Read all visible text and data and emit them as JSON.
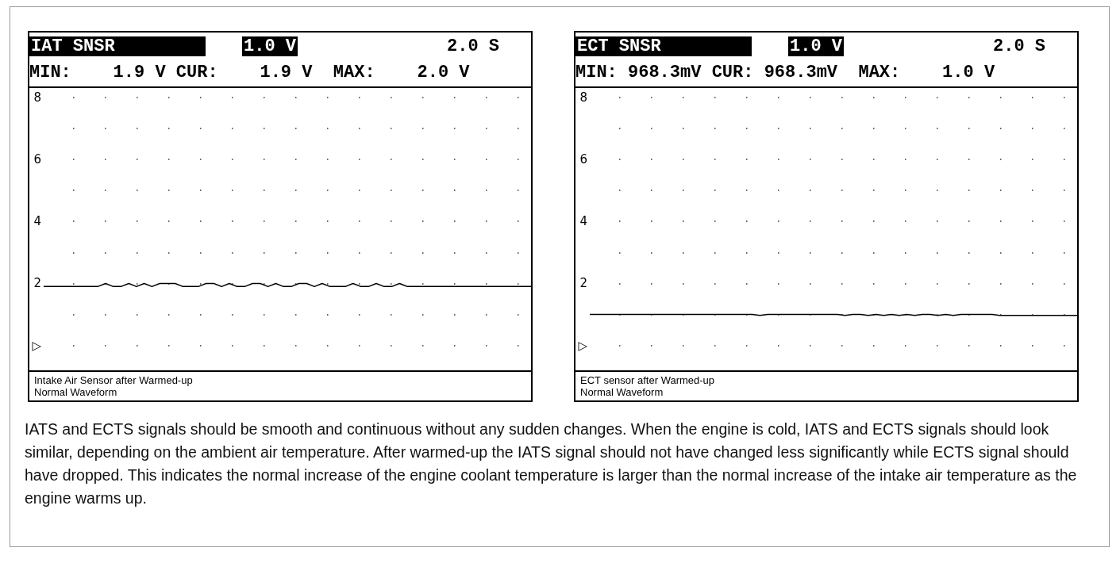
{
  "chart_data": [
    {
      "type": "line",
      "title": "IAT SNSR",
      "subtitle": "MIN:    1.9 V CUR:    1.9 V  MAX:    2.0 V",
      "annotations": [
        "1.0 V",
        "2.0 S",
        "Intake Air Sensor after Warmed-up",
        "Normal Waveform"
      ],
      "categories": [
        null,
        null,
        null,
        null,
        null,
        null,
        null,
        null,
        null,
        null,
        null,
        null,
        null,
        null,
        null,
        null,
        null,
        null,
        null,
        null,
        null,
        null,
        null,
        null,
        null,
        null,
        null,
        null,
        null,
        null,
        null,
        null,
        null,
        null,
        null,
        null,
        null,
        null,
        null,
        null,
        null,
        null,
        null,
        null,
        null,
        null,
        null,
        null,
        null,
        null,
        null,
        null,
        null,
        null,
        null,
        null,
        null,
        null,
        null,
        null,
        null,
        null,
        null,
        null
      ],
      "series": [
        {
          "color": "#000000",
          "values": [
            1.9,
            1.9,
            1.9,
            1.9,
            1.9,
            1.9,
            1.9,
            1.9,
            2.0,
            1.9,
            1.9,
            2.0,
            1.9,
            2.0,
            1.9,
            2.0,
            2.0,
            2.0,
            1.9,
            1.9,
            1.9,
            2.0,
            2.0,
            1.9,
            2.0,
            1.9,
            1.9,
            2.0,
            2.0,
            1.9,
            2.0,
            1.9,
            1.9,
            2.0,
            2.0,
            1.9,
            2.0,
            1.9,
            1.9,
            1.9,
            2.0,
            1.9,
            1.9,
            2.0,
            1.9,
            1.9,
            2.0,
            1.9,
            1.9,
            1.9,
            1.9,
            1.9,
            1.9,
            1.9,
            1.9,
            1.9,
            1.9,
            1.9,
            1.9,
            1.9,
            1.9,
            1.9,
            1.9,
            1.9
          ]
        }
      ],
      "ylim": [
        -0.8,
        8.3
      ],
      "yticks": [
        {
          "value": 0,
          "label": "▷"
        },
        {
          "value": 1,
          "label": null
        },
        2,
        {
          "value": 3,
          "label": null
        },
        4,
        {
          "value": 5,
          "label": null
        },
        6,
        {
          "value": 7,
          "label": null
        },
        8
      ],
      "grid": "y",
      "tick_labels": "y",
      "marker": "none",
      "line_style": "solid"
    },
    {
      "type": "line",
      "title": "ECT SNSR",
      "subtitle": "MIN: 968.3mV CUR: 968.3mV  MAX:    1.0 V",
      "annotations": [
        "1.0 V",
        "2.0 S",
        "ECT sensor after Warmed-up",
        "Normal Waveform",
        "IATS and ECTS signals should be smooth and continuous without any sudden changes. When the engine is cold, IATS and ECTS signals should look similar, depending on the ambient air temperature. After warmed-up the IATS signal should not have changed less significantly while ECTS signal should have dropped. This indicates the normal increase of the engine coolant temperature is larger than the normal increase of the intake air temperature as the engine warms up."
      ],
      "categories": [
        null,
        null,
        null,
        null,
        null,
        null,
        null,
        null,
        null,
        null,
        null,
        null,
        null,
        null,
        null,
        null,
        null,
        null,
        null,
        null,
        null,
        null,
        null,
        null,
        null,
        null,
        null,
        null,
        null,
        null,
        null,
        null,
        null,
        null,
        null,
        null,
        null,
        null,
        null,
        null,
        null,
        null,
        null,
        null,
        null,
        null,
        null,
        null,
        null,
        null,
        null,
        null,
        null,
        null,
        null,
        null,
        null,
        null,
        null,
        null,
        null,
        null,
        null,
        null
      ],
      "series": [
        {
          "color": "#000000",
          "values": [
            1.0,
            1.0,
            1.0,
            1.0,
            1.0,
            1.0,
            1.0,
            1.0,
            1.0,
            1.0,
            1.0,
            1.0,
            1.0,
            1.0,
            1.0,
            1.0,
            1.0,
            1.0,
            1.0,
            1.0,
            1.0,
            1.0,
            0.97,
            1.0,
            1.0,
            1.0,
            1.0,
            1.0,
            1.0,
            1.0,
            1.0,
            1.0,
            1.0,
            0.97,
            1.0,
            1.0,
            0.97,
            1.0,
            0.97,
            1.0,
            0.97,
            1.0,
            0.97,
            1.0,
            1.0,
            0.97,
            1.0,
            0.97,
            1.0,
            1.0,
            1.0,
            1.0,
            1.0,
            0.97,
            0.97,
            0.97,
            0.97,
            0.97,
            0.97,
            0.97,
            0.97,
            0.97,
            0.97,
            0.97
          ]
        }
      ],
      "ylim": [
        -0.8,
        8.3
      ],
      "yticks": [
        {
          "value": 0,
          "label": "▷"
        },
        {
          "value": 1,
          "label": null
        },
        2,
        {
          "value": 3,
          "label": null
        },
        4,
        {
          "value": 5,
          "label": null
        },
        6,
        {
          "value": 7,
          "label": null
        },
        8
      ],
      "grid": "y",
      "tick_labels": "y",
      "marker": "none",
      "line_style": "solid"
    }
  ]
}
